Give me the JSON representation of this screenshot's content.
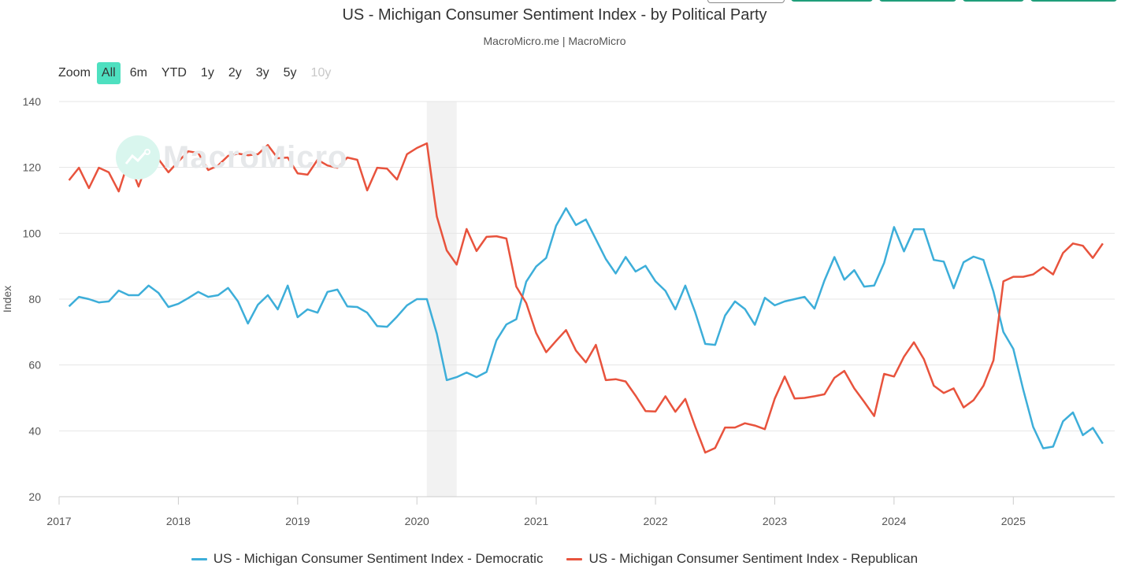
{
  "top_buttons": [
    "",
    "",
    "",
    "",
    ""
  ],
  "header": {
    "title": "US - Michigan Consumer Sentiment Index - by Political Party",
    "subtitle": "MacroMicro.me | MacroMicro"
  },
  "watermark": "MacroMicro",
  "zoom": {
    "label": "Zoom",
    "options": [
      {
        "label": "All",
        "state": "active"
      },
      {
        "label": "6m",
        "state": "normal"
      },
      {
        "label": "YTD",
        "state": "normal"
      },
      {
        "label": "1y",
        "state": "normal"
      },
      {
        "label": "2y",
        "state": "normal"
      },
      {
        "label": "3y",
        "state": "normal"
      },
      {
        "label": "5y",
        "state": "normal"
      },
      {
        "label": "10y",
        "state": "disabled"
      }
    ]
  },
  "chart_data": {
    "type": "line",
    "title": "US - Michigan Consumer Sentiment Index - by Political Party",
    "subtitle": "MacroMicro.me | MacroMicro",
    "xlabel": "",
    "ylabel": "Index",
    "ylim": [
      20,
      140
    ],
    "yticks": [
      20,
      40,
      60,
      80,
      100,
      120,
      140
    ],
    "xlim": [
      2017.0,
      2025.85
    ],
    "xticks": [
      "2017",
      "2018",
      "2019",
      "2020",
      "2021",
      "2022",
      "2023",
      "2024",
      "2025"
    ],
    "grid": true,
    "legend_position": "bottom-center",
    "shaded_band": {
      "from": 2020.083,
      "to": 2020.333,
      "color": "#f2f2f2",
      "meaning": "recession"
    },
    "x_start": "2017-02",
    "x_step": "monthly",
    "series": [
      {
        "name": "US - Michigan Consumer Sentiment Index - Democratic",
        "color": "#3daed9",
        "values": [
          77.8,
          80.7,
          80.0,
          79.0,
          79.3,
          82.6,
          81.2,
          81.2,
          84.1,
          81.9,
          77.6,
          78.6,
          80.3,
          82.2,
          80.7,
          81.2,
          83.4,
          79.3,
          72.6,
          78.3,
          81.2,
          76.9,
          84.1,
          74.5,
          76.9,
          75.9,
          82.2,
          82.9,
          77.8,
          77.6,
          75.9,
          71.8,
          71.6,
          74.7,
          78.1,
          80.0,
          80.0,
          69.5,
          55.4,
          56.3,
          57.7,
          56.3,
          57.9,
          67.5,
          72.3,
          73.9,
          85.3,
          89.9,
          92.5,
          102.3,
          107.6,
          102.5,
          104.2,
          98.2,
          92.2,
          87.8,
          92.8,
          88.4,
          90.1,
          85.4,
          82.5,
          76.9,
          84.1,
          76.0,
          66.4,
          66.1,
          75.0,
          79.3,
          77.0,
          72.2,
          80.4,
          78.1,
          79.3,
          80.0,
          80.7,
          77.1,
          85.7,
          92.8,
          85.9,
          88.8,
          83.8,
          84.1,
          91.0,
          101.9,
          94.5,
          101.2,
          101.2,
          91.9,
          91.4,
          83.3,
          91.2,
          92.9,
          91.9,
          82.3,
          70.0,
          64.9,
          52.5,
          41.2,
          34.7,
          35.2,
          42.9,
          45.6,
          38.7,
          40.9,
          36.1
        ]
      },
      {
        "name": "US - Michigan Consumer Sentiment Index - Republican",
        "color": "#e8533d",
        "values": [
          116.1,
          119.9,
          113.7,
          119.9,
          118.5,
          112.7,
          122.1,
          114.2,
          122.5,
          122.5,
          118.5,
          121.8,
          124.9,
          124.4,
          119.2,
          120.6,
          123.5,
          124.2,
          123.7,
          124.0,
          126.8,
          122.8,
          123.0,
          118.2,
          117.8,
          122.3,
          120.6,
          119.9,
          123.0,
          122.3,
          113.0,
          119.9,
          119.6,
          116.3,
          124.0,
          125.9,
          127.3,
          105.1,
          94.8,
          90.5,
          101.3,
          94.6,
          98.9,
          99.1,
          98.4,
          83.8,
          78.8,
          69.7,
          63.9,
          67.3,
          70.6,
          64.4,
          60.8,
          66.1,
          55.4,
          55.7,
          55.0,
          50.7,
          46.0,
          45.9,
          50.5,
          45.8,
          49.7,
          41.3,
          33.4,
          34.8,
          41.0,
          41.0,
          42.3,
          41.6,
          40.5,
          49.8,
          56.5,
          49.8,
          50.0,
          50.5,
          51.1,
          56.1,
          58.2,
          52.9,
          48.8,
          44.5,
          57.3,
          56.5,
          62.5,
          66.9,
          61.8,
          53.7,
          51.5,
          52.9,
          47.1,
          49.3,
          53.7,
          61.4,
          85.4,
          86.8,
          86.8,
          87.5,
          89.7,
          87.5,
          94.0,
          96.9,
          96.2,
          92.5,
          96.9
        ]
      }
    ]
  },
  "legend": [
    {
      "label": "US - Michigan Consumer Sentiment Index - Democratic",
      "color": "#3daed9"
    },
    {
      "label": "US - Michigan Consumer Sentiment Index - Republican",
      "color": "#e8533d"
    }
  ]
}
